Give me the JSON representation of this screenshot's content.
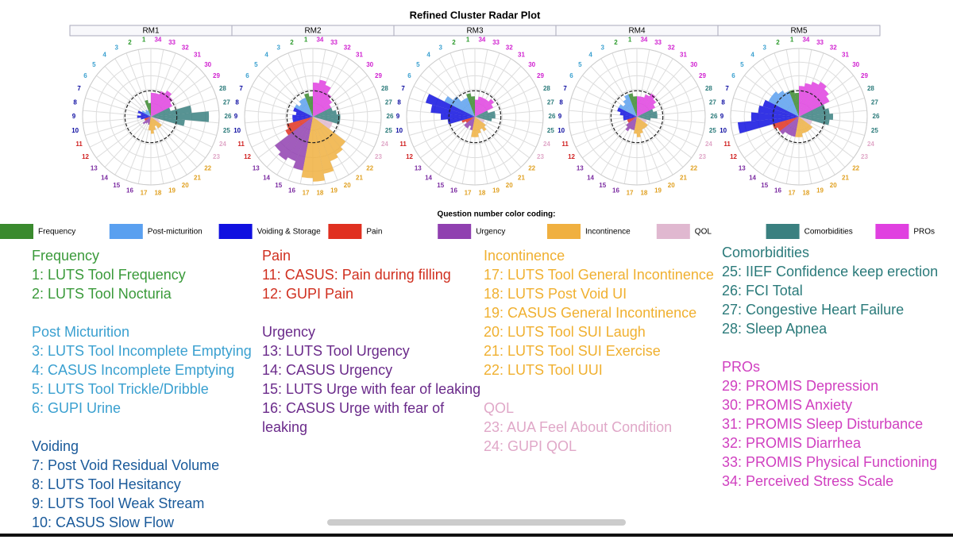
{
  "chart_data": [
    {
      "type": "radar",
      "title": "RM1",
      "rlim": [
        0,
        1
      ],
      "reference": 0.38,
      "categories": [
        "1",
        "2",
        "3",
        "4",
        "5",
        "6",
        "7",
        "8",
        "9",
        "10",
        "11",
        "12",
        "13",
        "14",
        "15",
        "16",
        "17",
        "18",
        "19",
        "20",
        "21",
        "22",
        "23",
        "24",
        "25",
        "26",
        "27",
        "28",
        "29",
        "30",
        "31",
        "32",
        "33",
        "34"
      ],
      "values": [
        0.2,
        0.25,
        0.1,
        0.12,
        0.1,
        0.15,
        0.2,
        0.15,
        0.2,
        0.15,
        0.1,
        0.1,
        0.15,
        0.12,
        0.1,
        0.12,
        0.2,
        0.25,
        0.2,
        0.15,
        0.2,
        0.2,
        0.15,
        0.12,
        0.5,
        0.85,
        0.6,
        0.3,
        0.35,
        0.4,
        0.45,
        0.4,
        0.35,
        0.35
      ]
    },
    {
      "type": "radar",
      "title": "RM2",
      "rlim": [
        0,
        1
      ],
      "reference": 0.38,
      "categories": [
        "1",
        "2",
        "3",
        "4",
        "5",
        "6",
        "7",
        "8",
        "9",
        "10",
        "11",
        "12",
        "13",
        "14",
        "15",
        "16",
        "17",
        "18",
        "19",
        "20",
        "21",
        "22",
        "23",
        "24",
        "25",
        "26",
        "27",
        "28",
        "29",
        "30",
        "31",
        "32",
        "33",
        "34"
      ],
      "values": [
        0.3,
        0.35,
        0.3,
        0.3,
        0.25,
        0.3,
        0.3,
        0.25,
        0.3,
        0.3,
        0.4,
        0.45,
        0.7,
        0.75,
        0.7,
        0.8,
        0.9,
        0.95,
        0.85,
        0.7,
        0.65,
        0.6,
        0.3,
        0.3,
        0.4,
        0.4,
        0.35,
        0.3,
        0.3,
        0.35,
        0.4,
        0.5,
        0.55,
        0.5
      ]
    },
    {
      "type": "radar",
      "title": "RM3",
      "rlim": [
        0,
        1
      ],
      "reference": 0.38,
      "categories": [
        "1",
        "2",
        "3",
        "4",
        "5",
        "6",
        "7",
        "8",
        "9",
        "10",
        "11",
        "12",
        "13",
        "14",
        "15",
        "16",
        "17",
        "18",
        "19",
        "20",
        "21",
        "22",
        "23",
        "24",
        "25",
        "26",
        "27",
        "28",
        "29",
        "30",
        "31",
        "32",
        "33",
        "34"
      ],
      "values": [
        0.3,
        0.35,
        0.3,
        0.3,
        0.4,
        0.5,
        0.75,
        0.65,
        0.5,
        0.4,
        0.2,
        0.15,
        0.2,
        0.2,
        0.15,
        0.2,
        0.3,
        0.3,
        0.25,
        0.2,
        0.25,
        0.2,
        0.15,
        0.15,
        0.25,
        0.3,
        0.3,
        0.2,
        0.3,
        0.35,
        0.3,
        0.3,
        0.3,
        0.25
      ]
    },
    {
      "type": "radar",
      "title": "RM4",
      "rlim": [
        0,
        1
      ],
      "reference": 0.38,
      "categories": [
        "1",
        "2",
        "3",
        "4",
        "5",
        "6",
        "7",
        "8",
        "9",
        "10",
        "11",
        "12",
        "13",
        "14",
        "15",
        "16",
        "17",
        "18",
        "19",
        "20",
        "21",
        "22",
        "23",
        "24",
        "25",
        "26",
        "27",
        "28",
        "29",
        "30",
        "31",
        "32",
        "33",
        "34"
      ],
      "values": [
        0.3,
        0.35,
        0.35,
        0.3,
        0.25,
        0.3,
        0.3,
        0.25,
        0.2,
        0.2,
        0.15,
        0.15,
        0.2,
        0.25,
        0.2,
        0.2,
        0.25,
        0.3,
        0.25,
        0.2,
        0.2,
        0.2,
        0.15,
        0.15,
        0.2,
        0.3,
        0.3,
        0.25,
        0.3,
        0.35,
        0.4,
        0.35,
        0.3,
        0.3
      ]
    },
    {
      "type": "radar",
      "title": "RM5",
      "rlim": [
        0,
        1
      ],
      "reference": 0.38,
      "categories": [
        "1",
        "2",
        "3",
        "4",
        "5",
        "6",
        "7",
        "8",
        "9",
        "10",
        "11",
        "12",
        "13",
        "14",
        "15",
        "16",
        "17",
        "18",
        "19",
        "20",
        "21",
        "22",
        "23",
        "24",
        "25",
        "26",
        "27",
        "28",
        "29",
        "30",
        "31",
        "32",
        "33",
        "34"
      ],
      "values": [
        0.35,
        0.4,
        0.4,
        0.45,
        0.5,
        0.5,
        0.55,
        0.6,
        0.7,
        0.9,
        0.4,
        0.35,
        0.35,
        0.3,
        0.3,
        0.3,
        0.3,
        0.3,
        0.25,
        0.25,
        0.25,
        0.25,
        0.2,
        0.2,
        0.45,
        0.5,
        0.45,
        0.4,
        0.5,
        0.55,
        0.6,
        0.55,
        0.5,
        0.45
      ]
    }
  ],
  "title": "Refined Cluster Radar Plot",
  "question_colors": [
    "#3a8a2e",
    "#3a8a2e",
    "#5aa0f0",
    "#5aa0f0",
    "#5aa0f0",
    "#5aa0f0",
    "#1010e0",
    "#1010e0",
    "#1010e0",
    "#1010e0",
    "#e03020",
    "#e03020",
    "#9040b0",
    "#9040b0",
    "#9040b0",
    "#9040b0",
    "#f0b040",
    "#f0b040",
    "#f0b040",
    "#f0b040",
    "#f0b040",
    "#f0b040",
    "#e0b8d0",
    "#e0b8d0",
    "#3a8080",
    "#3a8080",
    "#3a8080",
    "#3a8080",
    "#e040e0",
    "#e040e0",
    "#e040e0",
    "#e040e0",
    "#e040e0",
    "#e040e0"
  ],
  "label_colors": [
    "#2a9a2a",
    "#2a9a2a",
    "#3aa0d0",
    "#3aa0d0",
    "#3aa0d0",
    "#3aa0d0",
    "#0a0aa0",
    "#0a0aa0",
    "#0a0aa0",
    "#0a0aa0",
    "#d02020",
    "#d02020",
    "#7a2aa0",
    "#7a2aa0",
    "#7a2aa0",
    "#7a2aa0",
    "#e0a020",
    "#e0a020",
    "#e0a020",
    "#e0a020",
    "#e0a020",
    "#e0a020",
    "#e0a8c8",
    "#e0a8c8",
    "#2a7a7a",
    "#2a7a7a",
    "#2a7a7a",
    "#2a7a7a",
    "#d020d0",
    "#d020d0",
    "#d020d0",
    "#d020d0",
    "#d020d0",
    "#d020d0"
  ],
  "color_key": {
    "title": "Question number color coding:",
    "items": [
      {
        "name": "Frequency",
        "color": "#3a8a2e"
      },
      {
        "name": "Post-micturition",
        "color": "#5aa0f0"
      },
      {
        "name": "Voiding & Storage",
        "color": "#1010e0"
      },
      {
        "name": "Pain",
        "color": "#e03020"
      },
      {
        "name": "Urgency",
        "color": "#9040b0"
      },
      {
        "name": "Incontinence",
        "color": "#f0b040"
      },
      {
        "name": "QOL",
        "color": "#e0b8d0"
      },
      {
        "name": "Comorbidities",
        "color": "#3a8080"
      },
      {
        "name": "PROs",
        "color": "#e040e0"
      }
    ]
  },
  "columns": [
    [
      {
        "heading": "Frequency",
        "color": "#3a9a3a",
        "items": [
          "1: LUTS Tool Frequency",
          "2: LUTS Tool Nocturia"
        ]
      },
      {
        "heading": "Post Micturition",
        "color": "#3aa0d0",
        "items": [
          "3: LUTS Tool Incomplete Emptying",
          "4: CASUS Incomplete Emptying",
          "5: LUTS Tool Trickle/Dribble",
          "6: GUPI Urine"
        ]
      },
      {
        "heading": "Voiding",
        "color": "#1a5a9a",
        "items": [
          "7: Post Void Residual Volume",
          "8: LUTS Tool Hesitancy",
          "9: LUTS Tool Weak Stream",
          "10: CASUS Slow Flow"
        ]
      }
    ],
    [
      {
        "heading": "Pain",
        "color": "#d03020",
        "items": [
          "11: CASUS: Pain during filling",
          "12: GUPI Pain"
        ]
      },
      {
        "heading": "Urgency",
        "color": "#6a2a8a",
        "items": [
          "13: LUTS Tool Urgency",
          "14: CASUS Urgency",
          "15: LUTS Urge with fear of leaking",
          "16: CASUS Urge with fear of leaking"
        ]
      }
    ],
    [
      {
        "heading": "Incontinence",
        "color": "#f0b030",
        "items": [
          "17: LUTS Tool General Incontinence",
          "18: LUTS Post Void UI",
          "19: CASUS General Incontinence",
          "20: LUTS Tool SUI Laugh",
          "21: LUTS Tool SUI Exercise",
          "22: LUTS Tool UUI"
        ]
      },
      {
        "heading": "QOL",
        "color": "#e0a8c8",
        "items": [
          "23: AUA Feel About Condition",
          "24: GUPI QOL"
        ]
      }
    ],
    [
      {
        "heading": "Comorbidities",
        "color": "#2a7a7a",
        "items": [
          "25: IIEF Confidence keep erection",
          "26: FCI Total",
          "27: Congestive Heart Failure",
          "28: Sleep Apnea"
        ]
      },
      {
        "heading": "PROs",
        "color": "#d040c0",
        "items": [
          "29: PROMIS Depression",
          "30: PROMIS Anxiety",
          "31: PROMIS Sleep Disturbance",
          "32: PROMIS Diarrhea",
          "33: PROMIS Physical Functioning",
          "34: Perceived Stress Scale"
        ]
      }
    ]
  ]
}
